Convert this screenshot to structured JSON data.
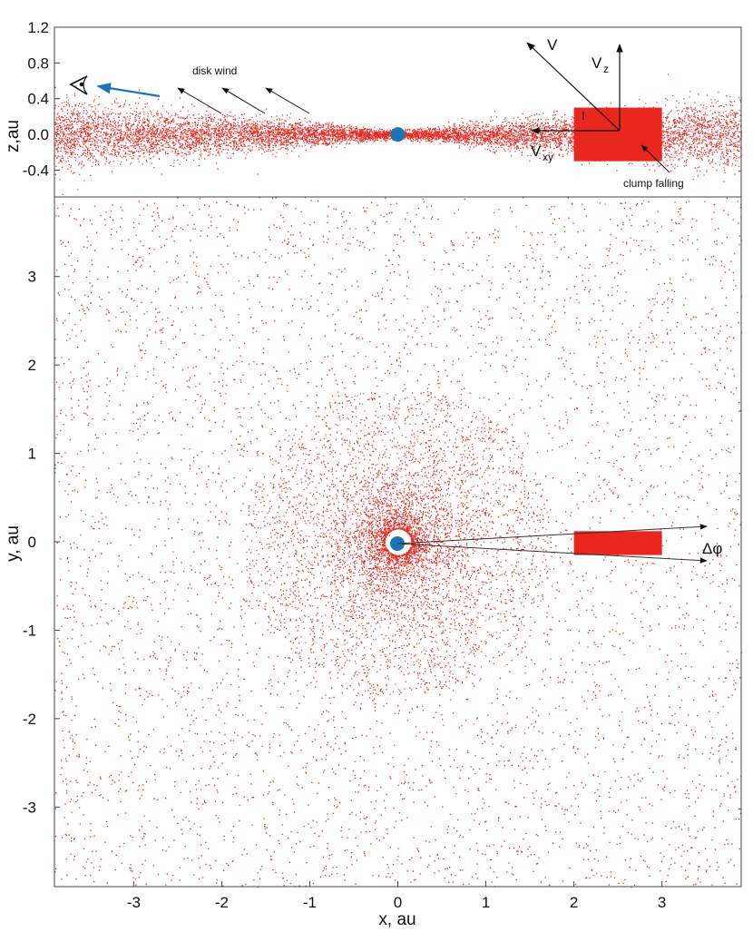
{
  "chart_data": [
    {
      "type": "scatter",
      "panel": "side view",
      "ylabel": "z,au",
      "xlim": [
        -3.9,
        3.9
      ],
      "ylim": [
        -0.7,
        1.2
      ],
      "yticks": [
        1.2,
        0.8,
        0.4,
        0.0,
        -0.4
      ],
      "ytick_labels": [
        "1.2",
        "0.8",
        "0.4",
        "0.0",
        "-0.4"
      ],
      "point_color": "#e8271f",
      "star": {
        "x": 0,
        "y": 0,
        "color": "#1a74b8"
      },
      "clump": {
        "x_range": [
          2.0,
          3.0
        ],
        "z_range": [
          -0.3,
          0.3
        ],
        "color": "#e8271f"
      },
      "annotations": {
        "disk_wind": "disk wind",
        "clump_falling": "clump falling",
        "v": "V",
        "vz": "V",
        "vz_sub": "z",
        "vxy": "V",
        "vxy_sub": "xy",
        "inclination": "I"
      },
      "observer_arrow_color": "#1a74b8"
    },
    {
      "type": "scatter",
      "panel": "top view",
      "xlabel": "x, au",
      "ylabel": "y, au",
      "xlim": [
        -3.9,
        3.9
      ],
      "ylim": [
        -3.9,
        3.9
      ],
      "xticks": [
        -3,
        -2,
        -1,
        0,
        1,
        2,
        3
      ],
      "xtick_labels": [
        "-3",
        "-2",
        "-1",
        "0",
        "1",
        "2",
        "3"
      ],
      "yticks": [
        3,
        2,
        1,
        0,
        -1,
        -2,
        -3
      ],
      "ytick_labels": [
        "3",
        "2",
        "1",
        "0",
        "-1",
        "-2",
        "-3"
      ],
      "point_color": "#e8271f",
      "star": {
        "x": 0,
        "y": 0,
        "color": "#1a74b8"
      },
      "clump": {
        "x_range": [
          2.0,
          3.0
        ],
        "y_range": [
          -0.15,
          0.12
        ],
        "color": "#e8271f"
      },
      "annotations": {
        "delta_phi": "Δφ"
      }
    }
  ]
}
